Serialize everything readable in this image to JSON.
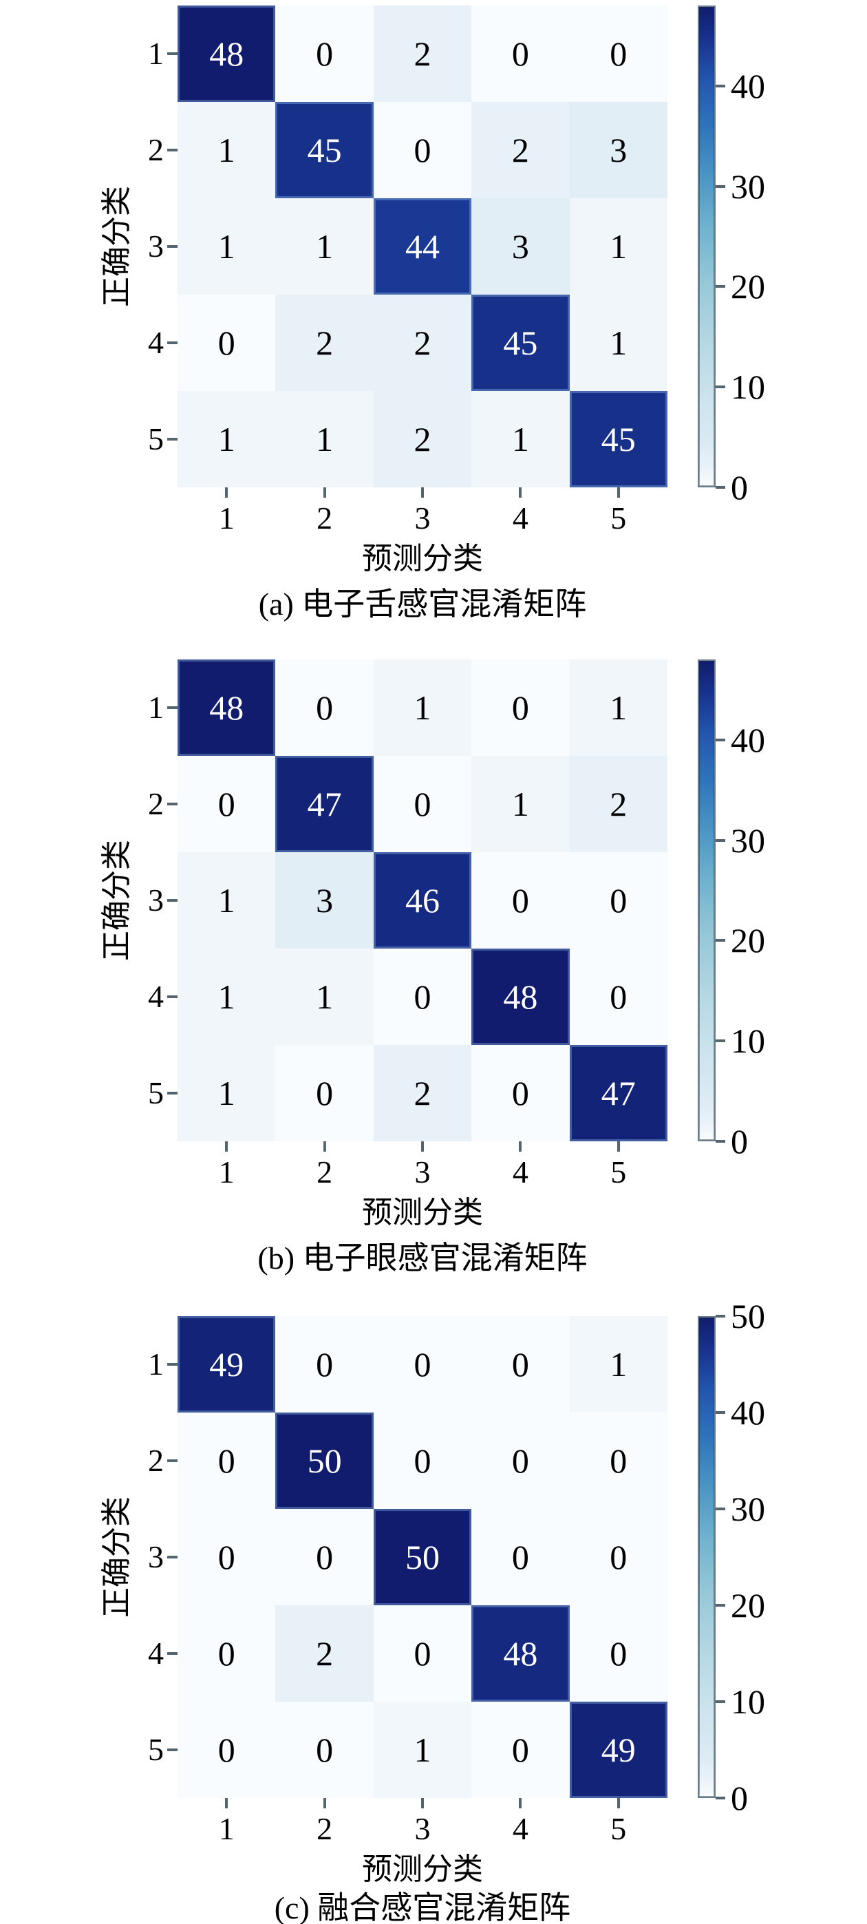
{
  "chart_data": [
    {
      "type": "heatmap",
      "title": "(a) 电子舌感官混淆矩阵",
      "xlabel": "预测分类",
      "ylabel": "正确分类",
      "x_ticklabels": [
        "1",
        "2",
        "3",
        "4",
        "5"
      ],
      "y_ticklabels": [
        "1",
        "2",
        "3",
        "4",
        "5"
      ],
      "values": [
        [
          48,
          0,
          2,
          0,
          0
        ],
        [
          1,
          45,
          0,
          2,
          3
        ],
        [
          1,
          1,
          44,
          3,
          1
        ],
        [
          0,
          2,
          2,
          45,
          1
        ],
        [
          1,
          1,
          2,
          1,
          45
        ]
      ],
      "vmin": 0,
      "vmax": 48,
      "colorbar_ticks": [
        0,
        10,
        20,
        30,
        40
      ],
      "legend_position": "right-colorbar",
      "grid": false
    },
    {
      "type": "heatmap",
      "title": "(b) 电子眼感官混淆矩阵",
      "xlabel": "预测分类",
      "ylabel": "正确分类",
      "x_ticklabels": [
        "1",
        "2",
        "3",
        "4",
        "5"
      ],
      "y_ticklabels": [
        "1",
        "2",
        "3",
        "4",
        "5"
      ],
      "values": [
        [
          48,
          0,
          1,
          0,
          1
        ],
        [
          0,
          47,
          0,
          1,
          2
        ],
        [
          1,
          3,
          46,
          0,
          0
        ],
        [
          1,
          1,
          0,
          48,
          0
        ],
        [
          1,
          0,
          2,
          0,
          47
        ]
      ],
      "vmin": 0,
      "vmax": 48,
      "colorbar_ticks": [
        0,
        10,
        20,
        30,
        40
      ],
      "legend_position": "right-colorbar",
      "grid": false
    },
    {
      "type": "heatmap",
      "title": "(c) 融合感官混淆矩阵",
      "xlabel": "预测分类",
      "ylabel": "正确分类",
      "x_ticklabels": [
        "1",
        "2",
        "3",
        "4",
        "5"
      ],
      "y_ticklabels": [
        "1",
        "2",
        "3",
        "4",
        "5"
      ],
      "values": [
        [
          49,
          0,
          0,
          0,
          1
        ],
        [
          0,
          50,
          0,
          0,
          0
        ],
        [
          0,
          0,
          50,
          0,
          0
        ],
        [
          0,
          2,
          0,
          48,
          0
        ],
        [
          0,
          0,
          1,
          0,
          49
        ]
      ],
      "vmin": 0,
      "vmax": 50,
      "colorbar_ticks": [
        0,
        10,
        20,
        30,
        40,
        50
      ],
      "legend_position": "right-colorbar",
      "grid": false
    }
  ],
  "style": {
    "colormap_stops": [
      [
        0.0,
        "#f9fcfe"
      ],
      [
        0.04,
        "#e9f1f8"
      ],
      [
        0.08,
        "#ddebf4"
      ],
      [
        0.18,
        "#cde4ee"
      ],
      [
        0.3,
        "#b5d8e3"
      ],
      [
        0.42,
        "#97c9d8"
      ],
      [
        0.55,
        "#6db0cd"
      ],
      [
        0.65,
        "#4a94c4"
      ],
      [
        0.75,
        "#2f74bb"
      ],
      [
        0.85,
        "#2355ad"
      ],
      [
        0.93,
        "#18338f"
      ],
      [
        1.0,
        "#111c6e"
      ]
    ],
    "cell_text_dark": "#000000",
    "cell_text_light": "#ffffff",
    "frame_color": "#8598a5",
    "tick_color": "#55656f",
    "background": "#ffffff",
    "white_text_threshold": 0.55
  }
}
